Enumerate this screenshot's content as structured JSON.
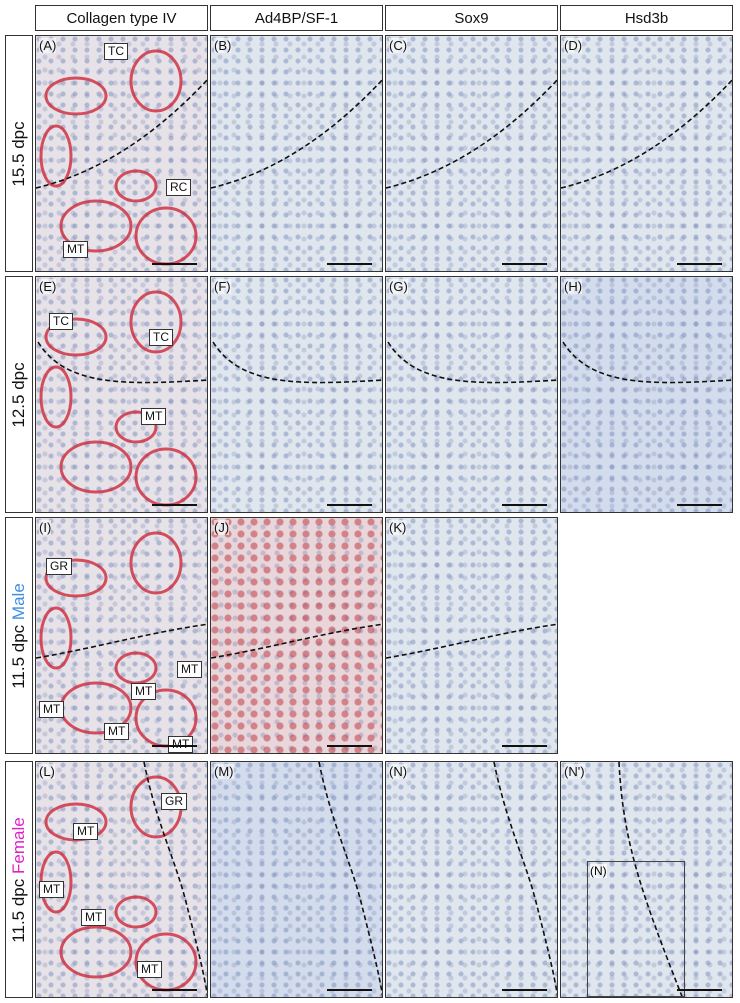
{
  "columns": [
    "Collagen type IV",
    "Ad4BP/SF-1",
    "Sox9",
    "Hsd3b"
  ],
  "rows": [
    {
      "label": "15.5 dpc",
      "panels": [
        {
          "label": "(A)",
          "annotations": [
            "TC",
            "RC",
            "MT"
          ]
        },
        {
          "label": "(B)"
        },
        {
          "label": "(C)"
        },
        {
          "label": "(D)"
        }
      ]
    },
    {
      "label": "12.5 dpc",
      "panels": [
        {
          "label": "(E)",
          "annotations": [
            "TC",
            "TC",
            "MT"
          ]
        },
        {
          "label": "(F)"
        },
        {
          "label": "(G)"
        },
        {
          "label": "(H)"
        }
      ]
    },
    {
      "label": "11.5 dpc",
      "sex": "Male",
      "panels": [
        {
          "label": "(I)",
          "annotations": [
            "GR",
            "MT",
            "MT",
            "MT",
            "MT",
            "MT"
          ]
        },
        {
          "label": "(J)"
        },
        {
          "label": "(K)"
        }
      ]
    },
    {
      "label": "11.5 dpc",
      "sex": "Female",
      "panels": [
        {
          "label": "(L)",
          "annotations": [
            "GR",
            "MT",
            "MT",
            "MT",
            "MT"
          ]
        },
        {
          "label": "(M)"
        },
        {
          "label": "(N)"
        },
        {
          "label": "(N')",
          "inset": "(N)"
        }
      ]
    }
  ]
}
